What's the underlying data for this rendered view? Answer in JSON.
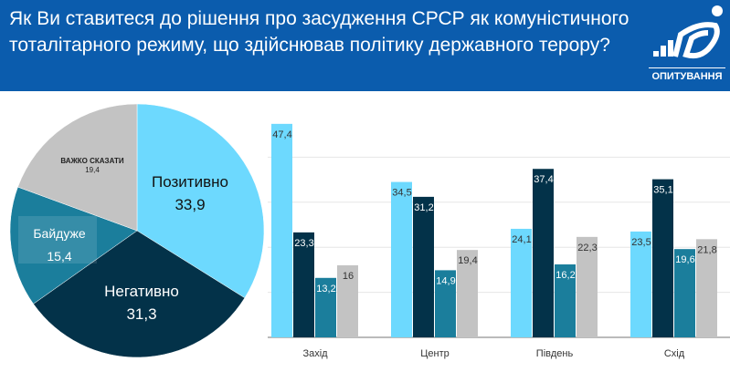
{
  "header": {
    "title": "Як Ви ставитеся до рішення про засудження СРСР як  комуністичного тоталітарного режиму, що здійснював політику державного терору?",
    "logo_text": "ОПИТУВАННЯ",
    "color": "#0b5cad"
  },
  "chart_data": [
    {
      "type": "pie",
      "start": "top",
      "direction": "clockwise",
      "slices": [
        {
          "label": "Позитивно",
          "value": 33.9,
          "color": "#6dd9fe"
        },
        {
          "label": "Негативно",
          "value": 31.3,
          "color": "#033249"
        },
        {
          "label": "Байдуже",
          "value": 15.4,
          "color": "#1b7e9c"
        },
        {
          "label": "ВАЖКО СКАЗАТИ",
          "value": 19.4,
          "color": "#c3c3c3"
        }
      ]
    },
    {
      "type": "bar",
      "categories": [
        "Захід",
        "Центр",
        "Південь",
        "Схід"
      ],
      "grid": true,
      "ylim": [
        0,
        48
      ],
      "series": [
        {
          "values": [
            47.4,
            34.5,
            24.1,
            23.5
          ],
          "color": "#6dd9fe"
        },
        {
          "values": [
            23.3,
            31.2,
            37.4,
            35.1
          ],
          "color": "#033249"
        },
        {
          "values": [
            13.2,
            14.9,
            16.2,
            19.6
          ],
          "color": "#1b7e9c"
        },
        {
          "values": [
            16,
            19.4,
            22.3,
            21.8
          ],
          "color": "#c3c3c3"
        }
      ]
    }
  ]
}
